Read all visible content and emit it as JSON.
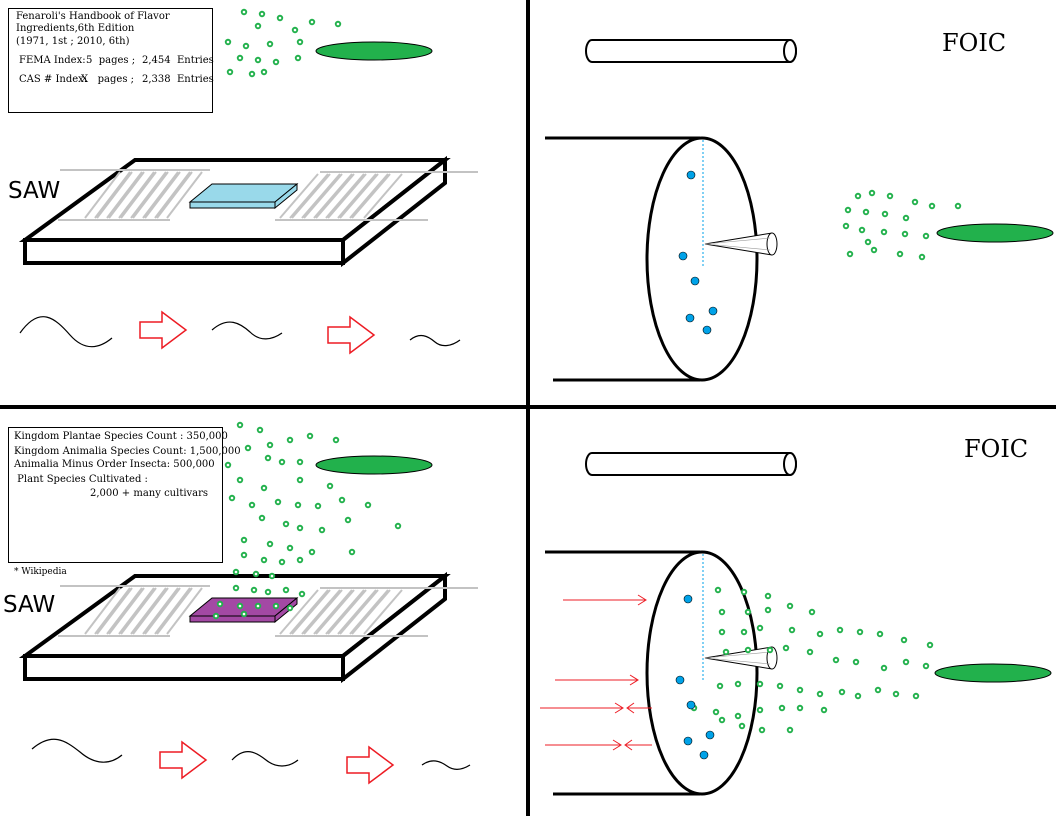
{
  "top_left": {
    "box_lines": [
      "Fenaroli's Handbook of Flavor",
      "Ingredients,6th Edition",
      "(1971, 1st ; 2010, 6th)"
    ],
    "fema_index": {
      "label": "FEMA Index:",
      "pages": "5  pages ;",
      "entries": "2,454  Entries"
    },
    "cas_index": {
      "label": "CAS # Index:",
      "pages": "X   pages ;",
      "entries": "2,338  Entries"
    },
    "saw_label": "SAW"
  },
  "bottom_left": {
    "box_lines": [
      "Kingdom Plantae Species Count : 350,000",
      "Kingdom Animalia Species Count: 1,500,000",
      "Animalia Minus Order Insecta: 500,000",
      " Plant Species Cultivated :",
      "2,000 + many cultivars"
    ],
    "footnote": "* Wikipedia",
    "saw_label": "SAW"
  },
  "top_right": {
    "foic_label": "FOIC"
  },
  "bottom_right": {
    "foic_label": "FOIC"
  },
  "colors": {
    "divider": "#000000",
    "ellipse_fill": "#22b14c",
    "particle": "#22b14c",
    "blue_dot": "#00a2e8",
    "blue_plate": "#99d9ea",
    "purple_plate": "#a349a4",
    "arrow_outline": "#ed1c24",
    "electrode": "#c3c3c3"
  }
}
